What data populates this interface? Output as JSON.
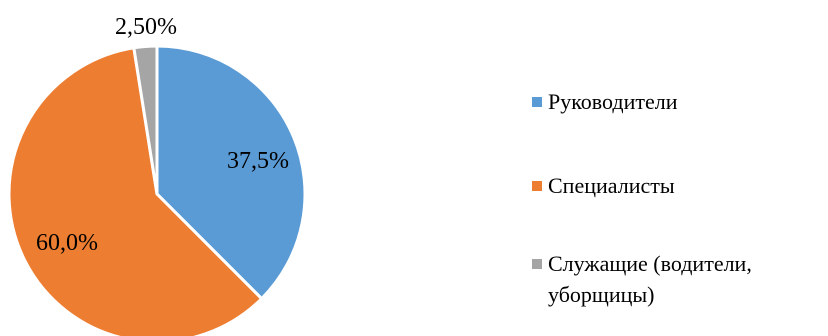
{
  "chart_data": {
    "type": "pie",
    "title": "",
    "categories": [
      "Руководители",
      "Специалисты",
      "Служащие (водители, уборщицы)"
    ],
    "values": [
      37.5,
      60.0,
      2.5
    ],
    "data_labels": [
      "37,5%",
      "60,0%",
      "2,50%"
    ],
    "colors": [
      "#5b9bd5",
      "#ed7d31",
      "#a5a5a5"
    ],
    "start_angle_deg": 0,
    "direction": "clockwise",
    "legend_position": "right",
    "legend": [
      "Руководители",
      "Специалисты",
      "Служащие (водители, уборщицы)"
    ]
  }
}
